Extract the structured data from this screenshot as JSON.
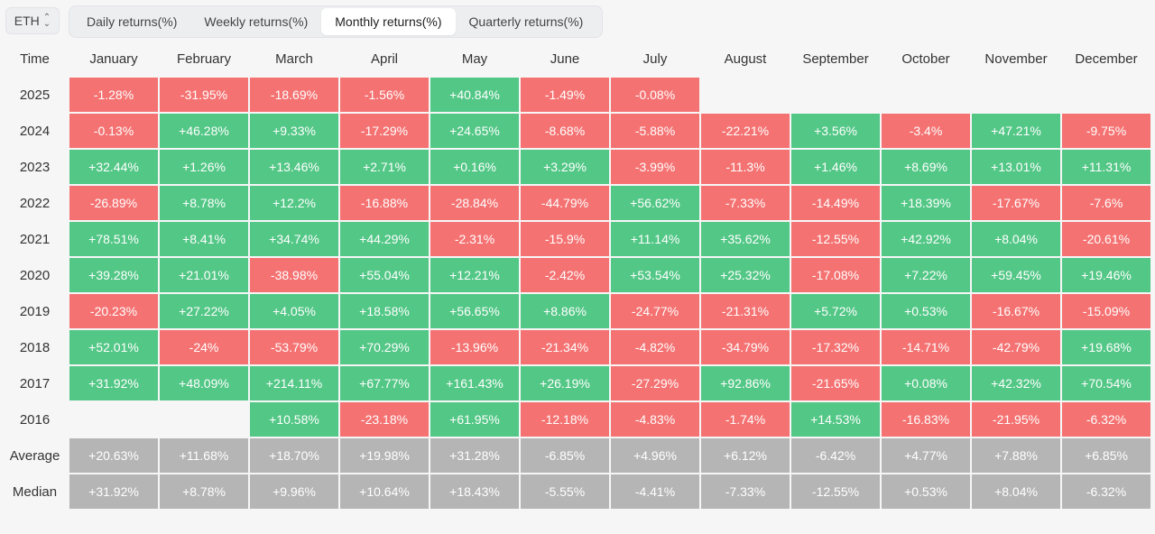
{
  "asset_select": {
    "value": "ETH"
  },
  "tabs": [
    {
      "label": "Daily returns(%)"
    },
    {
      "label": "Weekly returns(%)"
    },
    {
      "label": "Monthly returns(%)",
      "active": true
    },
    {
      "label": "Quarterly returns(%)"
    }
  ],
  "table": {
    "headers": [
      "Time",
      "January",
      "February",
      "March",
      "April",
      "May",
      "June",
      "July",
      "August",
      "September",
      "October",
      "November",
      "December"
    ],
    "rows": [
      {
        "label": "2025",
        "cells": [
          "-1.28%",
          "-31.95%",
          "-18.69%",
          "-1.56%",
          "+40.84%",
          "-1.49%",
          "-0.08%",
          "",
          "",
          "",
          "",
          ""
        ]
      },
      {
        "label": "2024",
        "cells": [
          "-0.13%",
          "+46.28%",
          "+9.33%",
          "-17.29%",
          "+24.65%",
          "-8.68%",
          "-5.88%",
          "-22.21%",
          "+3.56%",
          "-3.4%",
          "+47.21%",
          "-9.75%"
        ]
      },
      {
        "label": "2023",
        "cells": [
          "+32.44%",
          "+1.26%",
          "+13.46%",
          "+2.71%",
          "+0.16%",
          "+3.29%",
          "-3.99%",
          "-11.3%",
          "+1.46%",
          "+8.69%",
          "+13.01%",
          "+11.31%"
        ]
      },
      {
        "label": "2022",
        "cells": [
          "-26.89%",
          "+8.78%",
          "+12.2%",
          "-16.88%",
          "-28.84%",
          "-44.79%",
          "+56.62%",
          "-7.33%",
          "-14.49%",
          "+18.39%",
          "-17.67%",
          "-7.6%"
        ]
      },
      {
        "label": "2021",
        "cells": [
          "+78.51%",
          "+8.41%",
          "+34.74%",
          "+44.29%",
          "-2.31%",
          "-15.9%",
          "+11.14%",
          "+35.62%",
          "-12.55%",
          "+42.92%",
          "+8.04%",
          "-20.61%"
        ]
      },
      {
        "label": "2020",
        "cells": [
          "+39.28%",
          "+21.01%",
          "-38.98%",
          "+55.04%",
          "+12.21%",
          "-2.42%",
          "+53.54%",
          "+25.32%",
          "-17.08%",
          "+7.22%",
          "+59.45%",
          "+19.46%"
        ]
      },
      {
        "label": "2019",
        "cells": [
          "-20.23%",
          "+27.22%",
          "+4.05%",
          "+18.58%",
          "+56.65%",
          "+8.86%",
          "-24.77%",
          "-21.31%",
          "+5.72%",
          "+0.53%",
          "-16.67%",
          "-15.09%"
        ]
      },
      {
        "label": "2018",
        "cells": [
          "+52.01%",
          "-24%",
          "-53.79%",
          "+70.29%",
          "-13.96%",
          "-21.34%",
          "-4.82%",
          "-34.79%",
          "-17.32%",
          "-14.71%",
          "-42.79%",
          "+19.68%"
        ]
      },
      {
        "label": "2017",
        "cells": [
          "+31.92%",
          "+48.09%",
          "+214.11%",
          "+67.77%",
          "+161.43%",
          "+26.19%",
          "-27.29%",
          "+92.86%",
          "-21.65%",
          "+0.08%",
          "+42.32%",
          "+70.54%"
        ]
      },
      {
        "label": "2016",
        "cells": [
          "",
          "",
          "+10.58%",
          "-23.18%",
          "+61.95%",
          "-12.18%",
          "-4.83%",
          "-1.74%",
          "+14.53%",
          "-16.83%",
          "-21.95%",
          "-6.32%"
        ]
      }
    ],
    "summary": [
      {
        "label": "Average",
        "cells": [
          "+20.63%",
          "+11.68%",
          "+18.70%",
          "+19.98%",
          "+31.28%",
          "-6.85%",
          "+4.96%",
          "+6.12%",
          "-6.42%",
          "+4.77%",
          "+7.88%",
          "+6.85%"
        ]
      },
      {
        "label": "Median",
        "cells": [
          "+31.92%",
          "+8.78%",
          "+9.96%",
          "+10.64%",
          "+18.43%",
          "-5.55%",
          "-4.41%",
          "-7.33%",
          "-12.55%",
          "+0.53%",
          "+8.04%",
          "-6.32%"
        ]
      }
    ]
  },
  "colors": {
    "positive": "#53c786",
    "negative": "#f57272",
    "summary": "#b5b5b5"
  }
}
